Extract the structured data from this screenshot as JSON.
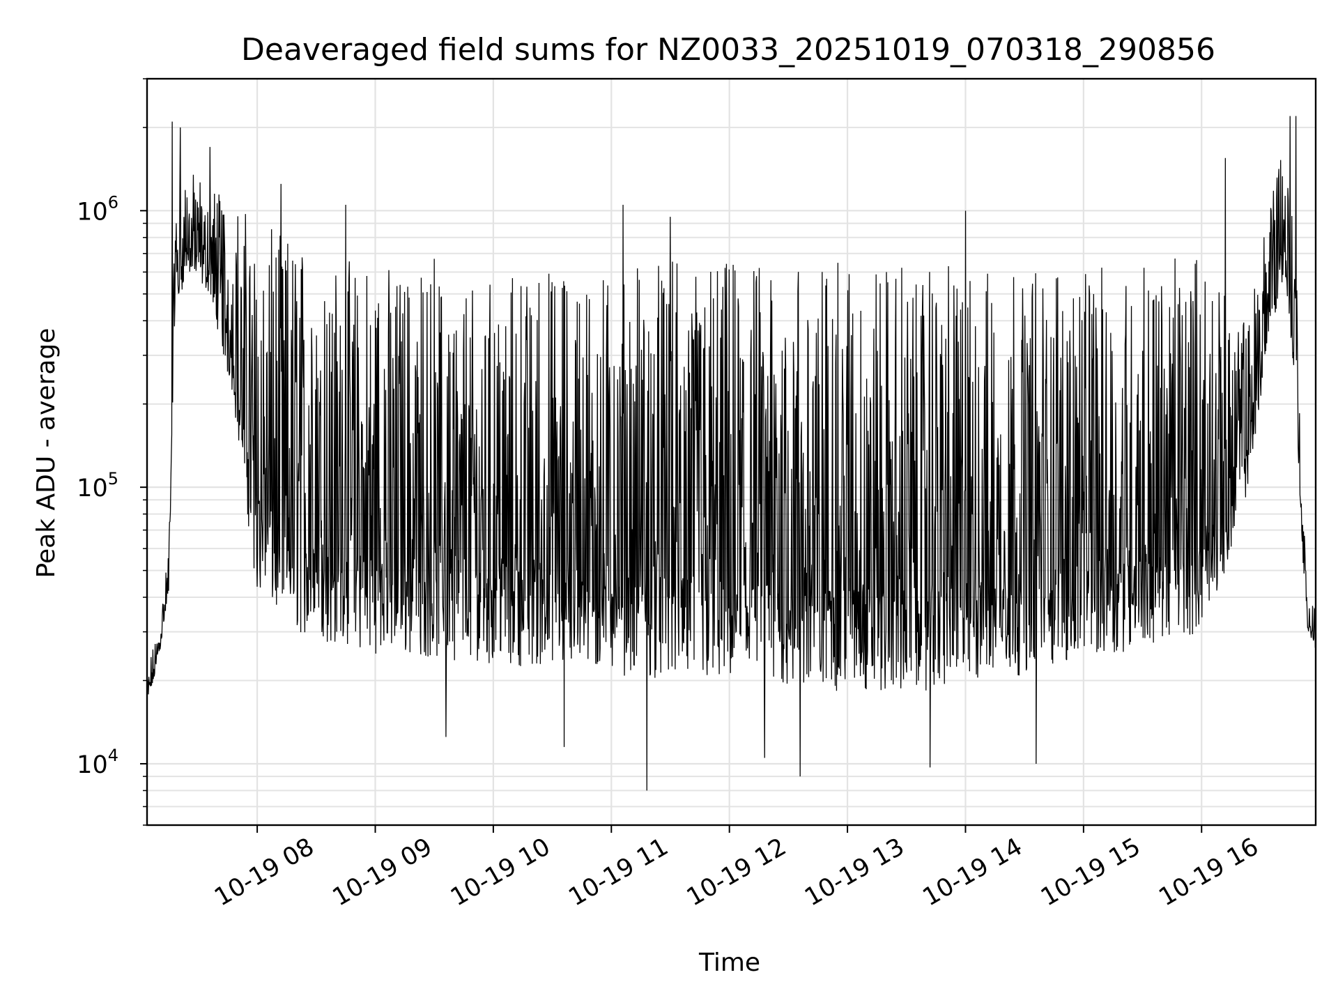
{
  "chart_data": {
    "type": "line",
    "title": "Deaveraged field sums for NZ0033_20251019_070318_290856",
    "xlabel": "Time",
    "ylabel": "Peak ADU - average",
    "x_range": [
      "10-19 07:04",
      "10-19 16:58"
    ],
    "y_scale": "log",
    "ylim": [
      6000,
      3000000
    ],
    "grid": true,
    "legend": "none",
    "line_color": "#000000",
    "x_ticks": [
      {
        "label": "10-19 08",
        "hour": 8
      },
      {
        "label": "10-19 09",
        "hour": 9
      },
      {
        "label": "10-19 10",
        "hour": 10
      },
      {
        "label": "10-19 11",
        "hour": 11
      },
      {
        "label": "10-19 12",
        "hour": 12
      },
      {
        "label": "10-19 13",
        "hour": 13
      },
      {
        "label": "10-19 14",
        "hour": 14
      },
      {
        "label": "10-19 15",
        "hour": 15
      },
      {
        "label": "10-19 16",
        "hour": 16
      }
    ],
    "y_ticks": [
      {
        "base": "10",
        "exp": "4",
        "value": 10000
      },
      {
        "base": "10",
        "exp": "5",
        "value": 100000
      },
      {
        "base": "10",
        "exp": "6",
        "value": 1000000
      }
    ],
    "series": [
      {
        "envelope": {
          "hours": [
            7.05,
            7.15,
            7.25,
            7.3,
            7.4,
            7.6,
            7.8,
            8.0,
            8.3,
            8.6,
            9.0,
            9.5,
            10.0,
            10.5,
            11.0,
            11.5,
            12.0,
            12.5,
            13.0,
            13.5,
            14.0,
            14.5,
            15.0,
            15.5,
            16.0,
            16.2,
            16.4,
            16.55,
            16.7,
            16.8,
            16.85,
            16.9,
            16.97
          ],
          "low": [
            15000,
            22000,
            40000,
            400000,
            600000,
            500000,
            200000,
            40000,
            30000,
            27000,
            25000,
            24000,
            23000,
            22000,
            21000,
            20000,
            19000,
            18500,
            18000,
            18000,
            19000,
            21000,
            24000,
            26000,
            30000,
            50000,
            100000,
            300000,
            600000,
            200000,
            60000,
            30000,
            25000
          ],
          "high": [
            20000,
            30000,
            60000,
            1200000,
            1400000,
            1300000,
            1100000,
            900000,
            800000,
            700000,
            650000,
            600000,
            600000,
            620000,
            650000,
            660000,
            660000,
            650000,
            650000,
            640000,
            630000,
            620000,
            620000,
            650000,
            700000,
            500000,
            400000,
            1200000,
            1800000,
            800000,
            100000,
            40000,
            42000
          ]
        },
        "spikes": [
          {
            "hour": 7.28,
            "value": 2100000
          },
          {
            "hour": 7.35,
            "value": 2000000
          },
          {
            "hour": 7.6,
            "value": 1700000
          },
          {
            "hour": 8.2,
            "value": 1250000
          },
          {
            "hour": 8.75,
            "value": 1050000
          },
          {
            "hour": 9.5,
            "value": 670000
          },
          {
            "hour": 9.6,
            "value": 12500
          },
          {
            "hour": 10.6,
            "value": 11500
          },
          {
            "hour": 11.1,
            "value": 1050000
          },
          {
            "hour": 11.3,
            "value": 8000
          },
          {
            "hour": 11.5,
            "value": 950000
          },
          {
            "hour": 12.3,
            "value": 10500
          },
          {
            "hour": 12.6,
            "value": 9000
          },
          {
            "hour": 13.7,
            "value": 9700
          },
          {
            "hour": 14.0,
            "value": 1000000
          },
          {
            "hour": 14.6,
            "value": 10000
          },
          {
            "hour": 16.2,
            "value": 1550000
          },
          {
            "hour": 16.75,
            "value": 2200000
          },
          {
            "hour": 16.8,
            "value": 2200000
          }
        ]
      }
    ]
  }
}
